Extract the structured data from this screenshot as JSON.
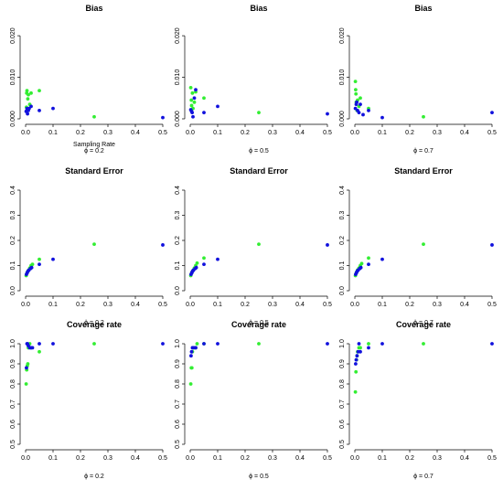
{
  "colors": {
    "green": "#33ee33",
    "blue": "#1111dd",
    "axis": "#000000"
  },
  "chart_data": [
    {
      "type": "scatter",
      "title": "Bias",
      "xlabel": "Sampling Rate",
      "sublabel": "ϕ = 0.2",
      "xlim": [
        0,
        0.5
      ],
      "ylim": [
        0,
        0.022
      ],
      "xticks": [
        "0.0",
        "0.1",
        "0.2",
        "0.3",
        "0.4",
        "0.5"
      ],
      "yticks": [
        {
          "v": 0.0,
          "label": "0.000"
        },
        {
          "v": 0.01,
          "label": "0.010"
        },
        {
          "v": 0.02,
          "label": "0.020"
        }
      ],
      "series": [
        {
          "color": "#33ee33",
          "points": [
            [
              0.003,
              0.0028
            ],
            [
              0.004,
              0.0062
            ],
            [
              0.005,
              0.0068
            ],
            [
              0.008,
              0.0048
            ],
            [
              0.01,
              0.0058
            ],
            [
              0.015,
              0.0035
            ],
            [
              0.02,
              0.0062
            ],
            [
              0.05,
              0.0068
            ],
            [
              0.25,
              0.0005
            ]
          ]
        },
        {
          "color": "#1111dd",
          "points": [
            [
              0.002,
              0.0018
            ],
            [
              0.005,
              0.0025
            ],
            [
              0.007,
              0.0012
            ],
            [
              0.01,
              0.002
            ],
            [
              0.013,
              0.0025
            ],
            [
              0.02,
              0.003
            ],
            [
              0.05,
              0.002
            ],
            [
              0.1,
              0.0025
            ],
            [
              0.5,
              0.0003
            ]
          ]
        }
      ]
    },
    {
      "type": "scatter",
      "title": "Bias",
      "xlabel": "",
      "sublabel": "ϕ = 0.5",
      "xlim": [
        0,
        0.5
      ],
      "ylim": [
        0,
        0.022
      ],
      "xticks": [
        "0.0",
        "0.1",
        "0.2",
        "0.3",
        "0.4",
        "0.5"
      ],
      "yticks": [
        {
          "v": 0.0,
          "label": "0.000"
        },
        {
          "v": 0.01,
          "label": "0.010"
        },
        {
          "v": 0.02,
          "label": "0.020"
        }
      ],
      "series": [
        {
          "color": "#33ee33",
          "points": [
            [
              0.002,
              0.0075
            ],
            [
              0.004,
              0.0045
            ],
            [
              0.005,
              0.0032
            ],
            [
              0.008,
              0.0062
            ],
            [
              0.01,
              0.0025
            ],
            [
              0.015,
              0.004
            ],
            [
              0.02,
              0.0065
            ],
            [
              0.05,
              0.005
            ],
            [
              0.25,
              0.0015
            ]
          ]
        },
        {
          "color": "#1111dd",
          "points": [
            [
              0.002,
              0.0022
            ],
            [
              0.005,
              0.0018
            ],
            [
              0.007,
              0.0015
            ],
            [
              0.01,
              0.0005
            ],
            [
              0.015,
              0.005
            ],
            [
              0.02,
              0.007
            ],
            [
              0.05,
              0.0015
            ],
            [
              0.1,
              0.003
            ],
            [
              0.5,
              0.0012
            ]
          ]
        }
      ]
    },
    {
      "type": "scatter",
      "title": "Bias",
      "xlabel": "",
      "sublabel": "ϕ = 0.7",
      "xlim": [
        0,
        0.5
      ],
      "ylim": [
        0,
        0.022
      ],
      "xticks": [
        "0.0",
        "0.1",
        "0.2",
        "0.3",
        "0.4",
        "0.5"
      ],
      "yticks": [
        {
          "v": 0.0,
          "label": "0.000"
        },
        {
          "v": 0.01,
          "label": "0.010"
        },
        {
          "v": 0.02,
          "label": "0.020"
        }
      ],
      "series": [
        {
          "color": "#33ee33",
          "points": [
            [
              0.002,
              0.009
            ],
            [
              0.003,
              0.007
            ],
            [
              0.004,
              0.006
            ],
            [
              0.005,
              0.004
            ],
            [
              0.008,
              0.002
            ],
            [
              0.01,
              0.0045
            ],
            [
              0.015,
              0.003
            ],
            [
              0.02,
              0.005
            ],
            [
              0.05,
              0.0025
            ],
            [
              0.25,
              0.0005
            ]
          ]
        },
        {
          "color": "#1111dd",
          "points": [
            [
              0.002,
              0.0025
            ],
            [
              0.005,
              0.0035
            ],
            [
              0.007,
              0.004
            ],
            [
              0.01,
              0.002
            ],
            [
              0.015,
              0.0015
            ],
            [
              0.02,
              0.0035
            ],
            [
              0.03,
              0.001
            ],
            [
              0.05,
              0.002
            ],
            [
              0.1,
              0.0003
            ],
            [
              0.5,
              0.0015
            ]
          ]
        }
      ]
    },
    {
      "type": "scatter",
      "title": "Standard Error",
      "xlabel": "",
      "sublabel": "ϕ = 0.2",
      "xlim": [
        0,
        0.5
      ],
      "ylim": [
        0,
        0.4
      ],
      "xticks": [
        "0.0",
        "0.1",
        "0.2",
        "0.3",
        "0.4",
        "0.5"
      ],
      "yticks": [
        {
          "v": 0.0,
          "label": "0.0"
        },
        {
          "v": 0.1,
          "label": "0.1"
        },
        {
          "v": 0.2,
          "label": "0.2"
        },
        {
          "v": 0.3,
          "label": "0.3"
        },
        {
          "v": 0.4,
          "label": "0.4"
        }
      ],
      "series": [
        {
          "color": "#33ee33",
          "points": [
            [
              0.002,
              0.06
            ],
            [
              0.005,
              0.07
            ],
            [
              0.007,
              0.075
            ],
            [
              0.01,
              0.08
            ],
            [
              0.015,
              0.09
            ],
            [
              0.02,
              0.1
            ],
            [
              0.025,
              0.105
            ],
            [
              0.05,
              0.125
            ],
            [
              0.25,
              0.185
            ]
          ]
        },
        {
          "color": "#1111dd",
          "points": [
            [
              0.003,
              0.065
            ],
            [
              0.006,
              0.072
            ],
            [
              0.009,
              0.078
            ],
            [
              0.012,
              0.082
            ],
            [
              0.018,
              0.088
            ],
            [
              0.022,
              0.092
            ],
            [
              0.05,
              0.105
            ],
            [
              0.1,
              0.125
            ],
            [
              0.5,
              0.182
            ]
          ]
        }
      ]
    },
    {
      "type": "scatter",
      "title": "Standard Error",
      "xlabel": "",
      "sublabel": "ϕ = 0.5",
      "xlim": [
        0,
        0.5
      ],
      "ylim": [
        0,
        0.4
      ],
      "xticks": [
        "0.0",
        "0.1",
        "0.2",
        "0.3",
        "0.4",
        "0.5"
      ],
      "yticks": [
        {
          "v": 0.0,
          "label": "0.0"
        },
        {
          "v": 0.1,
          "label": "0.1"
        },
        {
          "v": 0.2,
          "label": "0.2"
        },
        {
          "v": 0.3,
          "label": "0.3"
        },
        {
          "v": 0.4,
          "label": "0.4"
        }
      ],
      "series": [
        {
          "color": "#33ee33",
          "points": [
            [
              0.002,
              0.06
            ],
            [
              0.005,
              0.07
            ],
            [
              0.007,
              0.075
            ],
            [
              0.01,
              0.08
            ],
            [
              0.015,
              0.09
            ],
            [
              0.02,
              0.1
            ],
            [
              0.025,
              0.11
            ],
            [
              0.05,
              0.13
            ],
            [
              0.25,
              0.185
            ]
          ]
        },
        {
          "color": "#1111dd",
          "points": [
            [
              0.003,
              0.065
            ],
            [
              0.006,
              0.072
            ],
            [
              0.009,
              0.078
            ],
            [
              0.012,
              0.082
            ],
            [
              0.018,
              0.088
            ],
            [
              0.022,
              0.092
            ],
            [
              0.05,
              0.105
            ],
            [
              0.1,
              0.125
            ],
            [
              0.5,
              0.182
            ]
          ]
        }
      ]
    },
    {
      "type": "scatter",
      "title": "Standard Error",
      "xlabel": "",
      "sublabel": "ϕ = 0.7",
      "xlim": [
        0,
        0.5
      ],
      "ylim": [
        0,
        0.4
      ],
      "xticks": [
        "0.0",
        "0.1",
        "0.2",
        "0.3",
        "0.4",
        "0.5"
      ],
      "yticks": [
        {
          "v": 0.0,
          "label": "0.0"
        },
        {
          "v": 0.1,
          "label": "0.1"
        },
        {
          "v": 0.2,
          "label": "0.2"
        },
        {
          "v": 0.3,
          "label": "0.3"
        },
        {
          "v": 0.4,
          "label": "0.4"
        }
      ],
      "series": [
        {
          "color": "#33ee33",
          "points": [
            [
              0.002,
              0.06
            ],
            [
              0.005,
              0.07
            ],
            [
              0.007,
              0.075
            ],
            [
              0.01,
              0.082
            ],
            [
              0.015,
              0.09
            ],
            [
              0.02,
              0.1
            ],
            [
              0.025,
              0.108
            ],
            [
              0.05,
              0.13
            ],
            [
              0.25,
              0.185
            ]
          ]
        },
        {
          "color": "#1111dd",
          "points": [
            [
              0.003,
              0.065
            ],
            [
              0.006,
              0.072
            ],
            [
              0.009,
              0.078
            ],
            [
              0.012,
              0.082
            ],
            [
              0.018,
              0.088
            ],
            [
              0.022,
              0.092
            ],
            [
              0.05,
              0.105
            ],
            [
              0.1,
              0.125
            ],
            [
              0.5,
              0.182
            ]
          ]
        }
      ]
    },
    {
      "type": "scatter",
      "title": "Coverage rate",
      "xlabel": "",
      "sublabel": "ϕ = 0.2",
      "xlim": [
        0,
        0.5
      ],
      "ylim": [
        0.5,
        1.0
      ],
      "xticks": [
        "0.0",
        "0.1",
        "0.2",
        "0.3",
        "0.4",
        "0.5"
      ],
      "yticks": [
        {
          "v": 0.5,
          "label": "0.5"
        },
        {
          "v": 0.6,
          "label": "0.6"
        },
        {
          "v": 0.7,
          "label": "0.7"
        },
        {
          "v": 0.8,
          "label": "0.8"
        },
        {
          "v": 0.9,
          "label": "0.9"
        },
        {
          "v": 1.0,
          "label": "1.0"
        }
      ],
      "series": [
        {
          "color": "#33ee33",
          "points": [
            [
              0.002,
              0.8
            ],
            [
              0.004,
              0.87
            ],
            [
              0.006,
              0.89
            ],
            [
              0.008,
              0.9
            ],
            [
              0.01,
              0.98
            ],
            [
              0.015,
              1.0
            ],
            [
              0.02,
              0.98
            ],
            [
              0.05,
              0.96
            ],
            [
              0.25,
              1.0
            ]
          ]
        },
        {
          "color": "#1111dd",
          "points": [
            [
              0.003,
              0.88
            ],
            [
              0.005,
              1.0
            ],
            [
              0.007,
              1.0
            ],
            [
              0.01,
              0.99
            ],
            [
              0.015,
              0.98
            ],
            [
              0.02,
              0.98
            ],
            [
              0.025,
              0.98
            ],
            [
              0.05,
              1.0
            ],
            [
              0.1,
              1.0
            ],
            [
              0.5,
              1.0
            ]
          ]
        }
      ]
    },
    {
      "type": "scatter",
      "title": "Coverage rate",
      "xlabel": "",
      "sublabel": "ϕ = 0.5",
      "xlim": [
        0,
        0.5
      ],
      "ylim": [
        0.5,
        1.0
      ],
      "xticks": [
        "0.0",
        "0.1",
        "0.2",
        "0.3",
        "0.4",
        "0.5"
      ],
      "yticks": [
        {
          "v": 0.5,
          "label": "0.5"
        },
        {
          "v": 0.6,
          "label": "0.6"
        },
        {
          "v": 0.7,
          "label": "0.7"
        },
        {
          "v": 0.8,
          "label": "0.8"
        },
        {
          "v": 0.9,
          "label": "0.9"
        },
        {
          "v": 1.0,
          "label": "1.0"
        }
      ],
      "series": [
        {
          "color": "#33ee33",
          "points": [
            [
              0.002,
              0.8
            ],
            [
              0.004,
              0.88
            ],
            [
              0.006,
              0.88
            ],
            [
              0.008,
              0.96
            ],
            [
              0.01,
              0.98
            ],
            [
              0.015,
              0.98
            ],
            [
              0.02,
              0.98
            ],
            [
              0.025,
              1.0
            ],
            [
              0.05,
              1.0
            ],
            [
              0.25,
              1.0
            ]
          ]
        },
        {
          "color": "#1111dd",
          "points": [
            [
              0.003,
              0.94
            ],
            [
              0.005,
              0.96
            ],
            [
              0.008,
              0.98
            ],
            [
              0.012,
              0.98
            ],
            [
              0.02,
              0.98
            ],
            [
              0.05,
              1.0
            ],
            [
              0.1,
              1.0
            ],
            [
              0.5,
              1.0
            ]
          ]
        }
      ]
    },
    {
      "type": "scatter",
      "title": "Coverage rate",
      "xlabel": "",
      "sublabel": "ϕ = 0.7",
      "xlim": [
        0,
        0.5
      ],
      "ylim": [
        0.5,
        1.0
      ],
      "xticks": [
        "0.0",
        "0.1",
        "0.2",
        "0.3",
        "0.4",
        "0.5"
      ],
      "yticks": [
        {
          "v": 0.5,
          "label": "0.5"
        },
        {
          "v": 0.6,
          "label": "0.6"
        },
        {
          "v": 0.7,
          "label": "0.7"
        },
        {
          "v": 0.8,
          "label": "0.8"
        },
        {
          "v": 0.9,
          "label": "0.9"
        },
        {
          "v": 1.0,
          "label": "1.0"
        }
      ],
      "series": [
        {
          "color": "#33ee33",
          "points": [
            [
              0.002,
              0.76
            ],
            [
              0.004,
              0.86
            ],
            [
              0.006,
              0.92
            ],
            [
              0.008,
              0.94
            ],
            [
              0.01,
              0.96
            ],
            [
              0.015,
              0.98
            ],
            [
              0.02,
              0.98
            ],
            [
              0.05,
              1.0
            ],
            [
              0.25,
              1.0
            ]
          ]
        },
        {
          "color": "#1111dd",
          "points": [
            [
              0.003,
              0.9
            ],
            [
              0.005,
              0.92
            ],
            [
              0.008,
              0.94
            ],
            [
              0.012,
              0.96
            ],
            [
              0.015,
              1.0
            ],
            [
              0.02,
              0.96
            ],
            [
              0.05,
              0.98
            ],
            [
              0.1,
              1.0
            ],
            [
              0.5,
              1.0
            ]
          ]
        }
      ]
    }
  ]
}
